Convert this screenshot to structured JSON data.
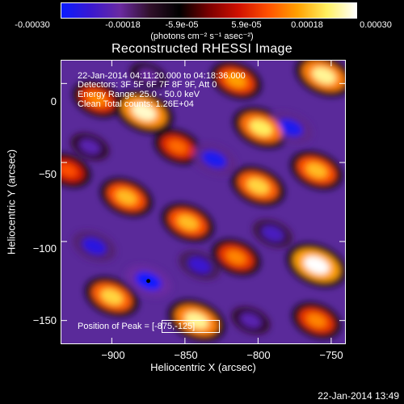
{
  "colorbar": {
    "ticks": [
      "-0.00030",
      "-0.00018",
      "-5.9e-05",
      "5.9e-05",
      "0.00018",
      "0.00030"
    ],
    "units": "(photons cm⁻² s⁻¹ asec⁻²)",
    "colors": [
      "#0a1cff",
      "#3a18d0",
      "#6a2aa0",
      "#30102a",
      "#000000",
      "#7a0000",
      "#d01000",
      "#ff5000",
      "#ffa000",
      "#fff060",
      "#ffffff"
    ]
  },
  "title": "Reconstructed RHESSI Image",
  "info": {
    "time_range": "22-Jan-2014 04:11:20.000 to 04:18:36.000",
    "detectors": "Detectors: 3F 5F 6F 7F 8F 9F, Att 0",
    "energy": "Energy Range: 25.0 - 50.0 keV",
    "method_counts": "Clean     Total counts: 1.26E+04",
    "peak": "Position of Peak = [-875,-125]"
  },
  "timestamp": "22-Jan-2014 13:49",
  "chart_data": {
    "type": "heatmap",
    "title": "Reconstructed RHESSI Image",
    "xlabel": "Heliocentric X (arcsec)",
    "ylabel": "Heliocentric Y (arcsec)",
    "xlim": [
      -935,
      -740
    ],
    "ylim": [
      -165,
      15
    ],
    "xticks": [
      -900,
      -850,
      -800,
      -750
    ],
    "yticks": [
      0,
      -50,
      -100,
      -150
    ],
    "xtick_labels": [
      "−900",
      "−850",
      "−800",
      "−750"
    ],
    "ytick_labels": [
      "0",
      "−50",
      "−100",
      "−150"
    ],
    "colorbar_range": [
      -0.0003,
      0.0003
    ],
    "peak_position": [
      -875,
      -125
    ],
    "blobs": [
      {
        "x": -875,
        "y": -125,
        "value": -0.0003
      },
      {
        "x": -830,
        "y": -48,
        "value": -0.00028
      },
      {
        "x": -778,
        "y": -28,
        "value": -0.00028
      },
      {
        "x": -912,
        "y": -103,
        "value": -0.00026
      },
      {
        "x": -840,
        "y": -115,
        "value": -0.00024
      },
      {
        "x": -790,
        "y": -95,
        "value": -0.00022
      },
      {
        "x": -915,
        "y": -40,
        "value": -0.0002
      },
      {
        "x": -805,
        "y": -150,
        "value": -0.0002
      },
      {
        "x": -875,
        "y": 5,
        "value": -0.00018
      },
      {
        "x": -760,
        "y": -115,
        "value": 0.0003
      },
      {
        "x": -878,
        "y": -18,
        "value": 0.00028
      },
      {
        "x": -755,
        "y": 5,
        "value": 0.00026
      },
      {
        "x": -842,
        "y": -150,
        "value": 0.00026
      },
      {
        "x": -798,
        "y": -28,
        "value": 0.00024
      },
      {
        "x": -800,
        "y": -65,
        "value": 0.00022
      },
      {
        "x": -900,
        "y": -135,
        "value": 0.00022
      },
      {
        "x": -760,
        "y": -55,
        "value": 0.0002
      },
      {
        "x": -848,
        "y": -88,
        "value": 0.0002
      },
      {
        "x": -890,
        "y": -72,
        "value": 0.0002
      },
      {
        "x": -815,
        "y": 2,
        "value": 0.00018
      },
      {
        "x": -910,
        "y": -10,
        "value": 0.00016
      },
      {
        "x": -815,
        "y": -110,
        "value": 0.00016
      },
      {
        "x": -760,
        "y": -150,
        "value": 0.00016
      },
      {
        "x": -930,
        "y": -55,
        "value": 0.00012
      },
      {
        "x": -855,
        "y": -40,
        "value": 0.00014
      }
    ]
  }
}
